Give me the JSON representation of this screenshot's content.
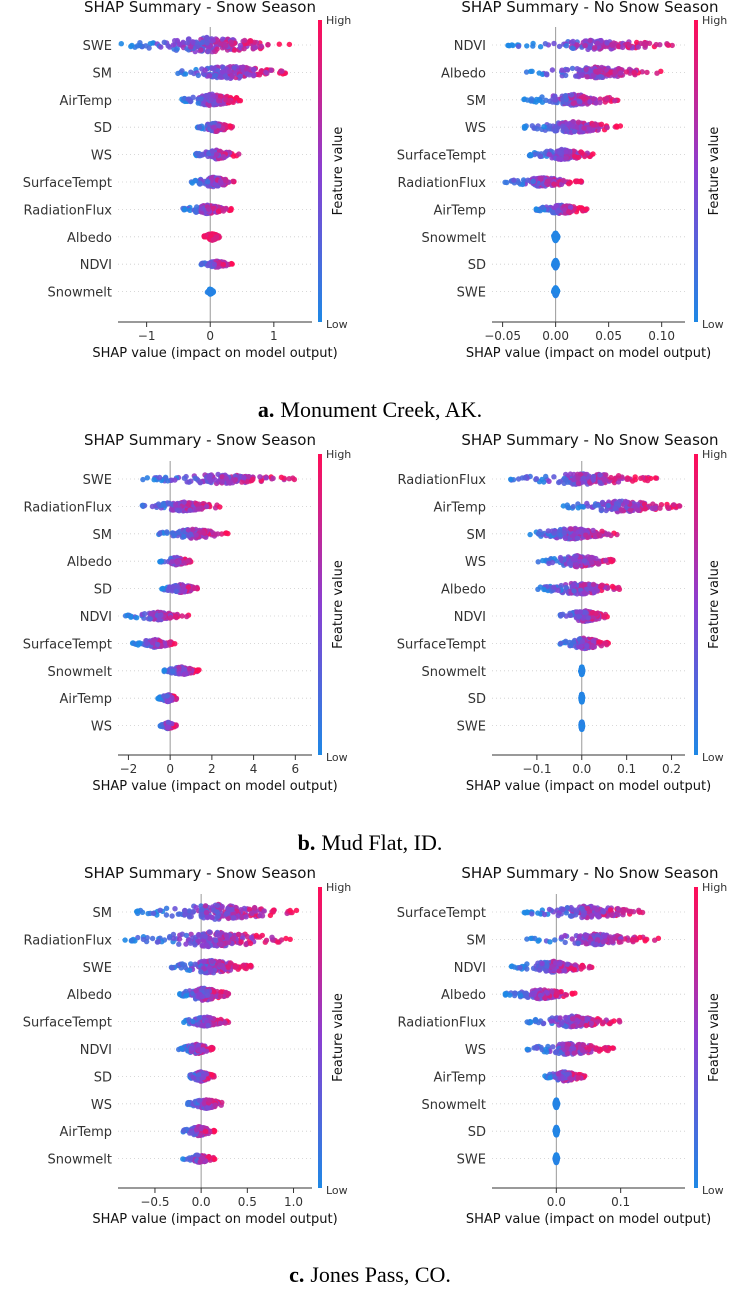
{
  "colors": {
    "low": "#1e88e5",
    "mid": "#8a3fd1",
    "high": "#ff0d57",
    "axis": "#333333",
    "zero": "#999999",
    "grid": "#cccccc"
  },
  "figure_panels": [
    {
      "label": "a.",
      "site": "Monument Creek, AK."
    },
    {
      "label": "b.",
      "site": "Mud Flat, ID."
    },
    {
      "label": "c.",
      "site": "Jones Pass, CO."
    }
  ],
  "chart_data": [
    {
      "type": "scatter",
      "title": "SHAP Summary - Snow Season",
      "xlabel": "SHAP value (impact on model output)",
      "colorbar_label": "Feature value",
      "colorbar_high": "High",
      "colorbar_low": "Low",
      "xlim": [
        -1.45,
        1.6
      ],
      "xticks": [
        -1,
        0,
        1
      ],
      "xtick_labels": [
        "−1",
        "0",
        "1"
      ],
      "features": [
        {
          "name": "SWE",
          "range": [
            -1.4,
            1.25
          ],
          "spread": 0.95,
          "color": "mixed"
        },
        {
          "name": "SM",
          "range": [
            -0.55,
            1.2
          ],
          "spread": 0.8,
          "color": "mixed"
        },
        {
          "name": "AirTemp",
          "range": [
            -0.45,
            0.5
          ],
          "spread": 0.75,
          "color": "mixed"
        },
        {
          "name": "SD",
          "range": [
            -0.2,
            0.35
          ],
          "spread": 0.55,
          "color": "mixed"
        },
        {
          "name": "WS",
          "range": [
            -0.25,
            0.45
          ],
          "spread": 0.55,
          "color": "mixed"
        },
        {
          "name": "SurfaceTempt",
          "range": [
            -0.3,
            0.4
          ],
          "spread": 0.6,
          "color": "mixed"
        },
        {
          "name": "RadiationFlux",
          "range": [
            -0.45,
            0.35
          ],
          "spread": 0.55,
          "color": "mixed"
        },
        {
          "name": "Albedo",
          "range": [
            -0.1,
            0.15
          ],
          "spread": 0.45,
          "color": "high"
        },
        {
          "name": "NDVI",
          "range": [
            -0.15,
            0.35
          ],
          "spread": 0.4,
          "color": "mixed"
        },
        {
          "name": "Snowmelt",
          "range": [
            -0.05,
            0.05
          ],
          "spread": 0.35,
          "color": "low"
        }
      ]
    },
    {
      "type": "scatter",
      "title": "SHAP Summary - No Snow Season",
      "xlabel": "SHAP value (impact on model output)",
      "colorbar_label": "Feature value",
      "colorbar_high": "High",
      "colorbar_low": "Low",
      "xlim": [
        -0.06,
        0.122
      ],
      "xticks": [
        -0.05,
        0.0,
        0.05,
        0.1
      ],
      "xtick_labels": [
        "−0.05",
        "0.00",
        "0.05",
        "0.10"
      ],
      "features": [
        {
          "name": "NDVI",
          "range": [
            -0.045,
            0.115
          ],
          "spread": 0.6,
          "color": "mixed"
        },
        {
          "name": "Albedo",
          "range": [
            -0.03,
            0.1
          ],
          "spread": 0.7,
          "color": "mixed"
        },
        {
          "name": "SM",
          "range": [
            -0.03,
            0.062
          ],
          "spread": 0.7,
          "color": "mixed"
        },
        {
          "name": "WS",
          "range": [
            -0.03,
            0.062
          ],
          "spread": 0.7,
          "color": "mixed"
        },
        {
          "name": "SurfaceTempt",
          "range": [
            -0.028,
            0.04
          ],
          "spread": 0.65,
          "color": "mixed"
        },
        {
          "name": "RadiationFlux",
          "range": [
            -0.05,
            0.025
          ],
          "spread": 0.55,
          "color": "mixed"
        },
        {
          "name": "AirTemp",
          "range": [
            -0.02,
            0.03
          ],
          "spread": 0.55,
          "color": "mixed"
        },
        {
          "name": "Snowmelt",
          "range": [
            -0.002,
            0.002
          ],
          "spread": 0.5,
          "color": "low"
        },
        {
          "name": "SD",
          "range": [
            -0.002,
            0.002
          ],
          "spread": 0.5,
          "color": "low"
        },
        {
          "name": "SWE",
          "range": [
            -0.002,
            0.002
          ],
          "spread": 0.5,
          "color": "low"
        }
      ]
    },
    {
      "type": "scatter",
      "title": "SHAP Summary - Snow Season",
      "xlabel": "SHAP value (impact on model output)",
      "colorbar_label": "Feature value",
      "colorbar_high": "High",
      "colorbar_low": "Low",
      "xlim": [
        -2.5,
        6.8
      ],
      "xticks": [
        -2,
        0,
        2,
        4,
        6
      ],
      "xtick_labels": [
        "−2",
        "0",
        "2",
        "4",
        "6"
      ],
      "features": [
        {
          "name": "SWE",
          "range": [
            -1.4,
            6.2
          ],
          "spread": 0.6,
          "color": "mixed"
        },
        {
          "name": "RadiationFlux",
          "range": [
            -1.4,
            2.5
          ],
          "spread": 0.6,
          "color": "mixed"
        },
        {
          "name": "SM",
          "range": [
            -0.6,
            2.8
          ],
          "spread": 0.6,
          "color": "mixed"
        },
        {
          "name": "Albedo",
          "range": [
            -0.5,
            1.0
          ],
          "spread": 0.5,
          "color": "mixed"
        },
        {
          "name": "SD",
          "range": [
            -0.4,
            1.4
          ],
          "spread": 0.5,
          "color": "mixed"
        },
        {
          "name": "NDVI",
          "range": [
            -2.2,
            0.9
          ],
          "spread": 0.5,
          "color": "mixed"
        },
        {
          "name": "SurfaceTempt",
          "range": [
            -1.8,
            0.3
          ],
          "spread": 0.5,
          "color": "mixed"
        },
        {
          "name": "Snowmelt",
          "range": [
            -0.3,
            1.4
          ],
          "spread": 0.5,
          "color": "mixed"
        },
        {
          "name": "AirTemp",
          "range": [
            -0.6,
            0.4
          ],
          "spread": 0.45,
          "color": "mixed"
        },
        {
          "name": "WS",
          "range": [
            -0.5,
            0.3
          ],
          "spread": 0.4,
          "color": "mixed"
        }
      ]
    },
    {
      "type": "scatter",
      "title": "SHAP Summary - No Snow Season",
      "xlabel": "SHAP value (impact on model output)",
      "colorbar_label": "Feature value",
      "colorbar_high": "High",
      "colorbar_low": "Low",
      "xlim": [
        -0.2,
        0.23
      ],
      "xticks": [
        -0.1,
        0.0,
        0.1,
        0.2
      ],
      "xtick_labels": [
        "−0.1",
        "0.0",
        "0.1",
        "0.2"
      ],
      "features": [
        {
          "name": "RadiationFlux",
          "range": [
            -0.17,
            0.17
          ],
          "spread": 0.7,
          "color": "mixed"
        },
        {
          "name": "AirTemp",
          "range": [
            -0.05,
            0.22
          ],
          "spread": 0.7,
          "color": "mixed"
        },
        {
          "name": "SM",
          "range": [
            -0.12,
            0.08
          ],
          "spread": 0.7,
          "color": "mixed"
        },
        {
          "name": "WS",
          "range": [
            -0.1,
            0.08
          ],
          "spread": 0.7,
          "color": "mixed"
        },
        {
          "name": "Albedo",
          "range": [
            -0.1,
            0.09
          ],
          "spread": 0.75,
          "color": "mixed"
        },
        {
          "name": "NDVI",
          "range": [
            -0.05,
            0.06
          ],
          "spread": 0.7,
          "color": "mixed"
        },
        {
          "name": "SurfaceTempt",
          "range": [
            -0.05,
            0.06
          ],
          "spread": 0.7,
          "color": "mixed"
        },
        {
          "name": "Snowmelt",
          "range": [
            -0.002,
            0.002
          ],
          "spread": 0.5,
          "color": "low"
        },
        {
          "name": "SD",
          "range": [
            -0.002,
            0.002
          ],
          "spread": 0.5,
          "color": "low"
        },
        {
          "name": "SWE",
          "range": [
            -0.002,
            0.002
          ],
          "spread": 0.5,
          "color": "low"
        }
      ]
    },
    {
      "type": "scatter",
      "title": "SHAP Summary - Snow Season",
      "xlabel": "SHAP value (impact on model output)",
      "colorbar_label": "Feature value",
      "colorbar_high": "High",
      "colorbar_low": "Low",
      "xlim": [
        -0.9,
        1.2
      ],
      "xticks": [
        -0.5,
        0.0,
        0.5,
        1.0
      ],
      "xtick_labels": [
        "−0.5",
        "0.0",
        "0.5",
        "1.0"
      ],
      "features": [
        {
          "name": "SM",
          "range": [
            -0.7,
            1.05
          ],
          "spread": 0.95,
          "color": "mixed"
        },
        {
          "name": "RadiationFlux",
          "range": [
            -0.85,
            1.05
          ],
          "spread": 0.95,
          "color": "mixed"
        },
        {
          "name": "SWE",
          "range": [
            -0.35,
            0.55
          ],
          "spread": 0.8,
          "color": "mixed"
        },
        {
          "name": "Albedo",
          "range": [
            -0.25,
            0.3
          ],
          "spread": 0.8,
          "color": "mixed"
        },
        {
          "name": "SurfaceTempt",
          "range": [
            -0.2,
            0.3
          ],
          "spread": 0.6,
          "color": "mixed"
        },
        {
          "name": "NDVI",
          "range": [
            -0.25,
            0.15
          ],
          "spread": 0.6,
          "color": "mixed"
        },
        {
          "name": "SD",
          "range": [
            -0.15,
            0.15
          ],
          "spread": 0.6,
          "color": "mixed"
        },
        {
          "name": "WS",
          "range": [
            -0.15,
            0.25
          ],
          "spread": 0.6,
          "color": "mixed"
        },
        {
          "name": "AirTemp",
          "range": [
            -0.2,
            0.15
          ],
          "spread": 0.6,
          "color": "mixed"
        },
        {
          "name": "Snowmelt",
          "range": [
            -0.2,
            0.15
          ],
          "spread": 0.5,
          "color": "mixed"
        }
      ]
    },
    {
      "type": "scatter",
      "title": "SHAP Summary - No Snow Season",
      "xlabel": "SHAP value (impact on model output)",
      "colorbar_label": "Feature value",
      "colorbar_high": "High",
      "colorbar_low": "Low",
      "xlim": [
        -0.1,
        0.2
      ],
      "xticks": [
        0.0,
        0.1
      ],
      "xtick_labels": [
        "0.0",
        "0.1"
      ],
      "features": [
        {
          "name": "SurfaceTempt",
          "range": [
            -0.05,
            0.14
          ],
          "spread": 0.75,
          "color": "mixed"
        },
        {
          "name": "SM",
          "range": [
            -0.05,
            0.16
          ],
          "spread": 0.7,
          "color": "mixed"
        },
        {
          "name": "NDVI",
          "range": [
            -0.07,
            0.06
          ],
          "spread": 0.7,
          "color": "mixed"
        },
        {
          "name": "Albedo",
          "range": [
            -0.08,
            0.03
          ],
          "spread": 0.6,
          "color": "mixed"
        },
        {
          "name": "RadiationFlux",
          "range": [
            -0.05,
            0.1
          ],
          "spread": 0.7,
          "color": "mixed"
        },
        {
          "name": "WS",
          "range": [
            -0.05,
            0.09
          ],
          "spread": 0.7,
          "color": "mixed"
        },
        {
          "name": "AirTemp",
          "range": [
            -0.02,
            0.045
          ],
          "spread": 0.6,
          "color": "mixed"
        },
        {
          "name": "Snowmelt",
          "range": [
            -0.002,
            0.002
          ],
          "spread": 0.5,
          "color": "low"
        },
        {
          "name": "SD",
          "range": [
            -0.002,
            0.002
          ],
          "spread": 0.5,
          "color": "low"
        },
        {
          "name": "SWE",
          "range": [
            -0.002,
            0.002
          ],
          "spread": 0.5,
          "color": "low"
        }
      ]
    }
  ]
}
